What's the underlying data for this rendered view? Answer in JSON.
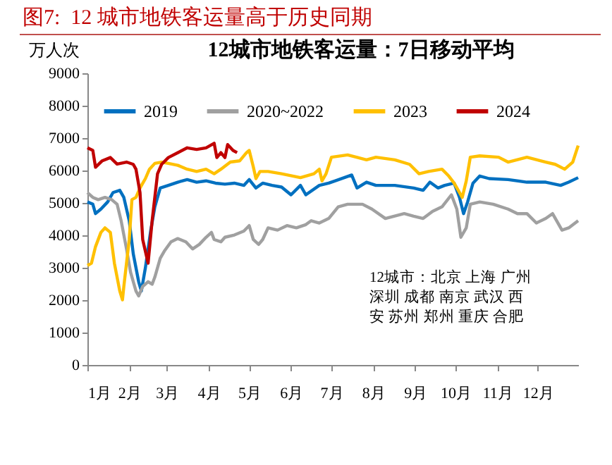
{
  "chart_data": {
    "type": "line",
    "title": "图7:  12 城市地铁客运量高于历史同期",
    "subtitle": "12城市地铁客运量：7日移动平均",
    "ylabel": "万人次",
    "annotations": [
      "12城市：北京 上海 广州深圳 成都 南京 武汉 西安 苏州 郑州 重庆 合肥"
    ],
    "xlim": [
      "--01-01",
      "--12-31"
    ],
    "xticks": [
      {
        "value": "--01-01",
        "label": "1月"
      },
      {
        "value": "--02-01",
        "label": "2月"
      },
      {
        "value": "--03-01",
        "label": "3月"
      },
      {
        "value": "--04-01",
        "label": "4月"
      },
      {
        "value": "--05-01",
        "label": "5月"
      },
      {
        "value": "--06-01",
        "label": "6月"
      },
      {
        "value": "--07-01",
        "label": "7月"
      },
      {
        "value": "--08-01",
        "label": "8月"
      },
      {
        "value": "--09-01",
        "label": "9月"
      },
      {
        "value": "--10-01",
        "label": "10月"
      },
      {
        "value": "--11-01",
        "label": "11月"
      },
      {
        "value": "--12-01",
        "label": "12月"
      }
    ],
    "ylim": [
      0,
      9000
    ],
    "yticks": [
      0,
      1000,
      2000,
      3000,
      4000,
      5000,
      6000,
      7000,
      8000,
      9000
    ],
    "grid": false,
    "legend": "top",
    "marker": "none",
    "line_style": "solid",
    "series": [
      {
        "name": "2019",
        "color": "#0070c0",
        "x": [
          "--01-01",
          "--01-05",
          "--01-07",
          "--01-11",
          "--01-16",
          "--01-20",
          "--01-25",
          "--01-28",
          "--02-01",
          "--02-04",
          "--02-08",
          "--02-10",
          "--02-13",
          "--02-17",
          "--02-20",
          "--02-24",
          "--03-02",
          "--03-09",
          "--03-16",
          "--03-23",
          "--03-30",
          "--04-06",
          "--04-13",
          "--04-20",
          "--04-27",
          "--05-01",
          "--05-06",
          "--05-11",
          "--05-18",
          "--05-25",
          "--06-01",
          "--06-08",
          "--06-12",
          "--06-22",
          "--06-29",
          "--07-16",
          "--07-20",
          "--07-27",
          "--08-03",
          "--08-17",
          "--08-31",
          "--09-07",
          "--09-12",
          "--09-18",
          "--09-23",
          "--09-30",
          "--10-04",
          "--10-07",
          "--10-10",
          "--10-14",
          "--10-19",
          "--10-26",
          "--11-09",
          "--11-23",
          "--12-07",
          "--12-18",
          "--12-24",
          "--12-31"
        ],
        "values": [
          5030,
          4960,
          4670,
          4810,
          5030,
          5320,
          5390,
          5170,
          4450,
          3430,
          2570,
          2280,
          3000,
          4160,
          4880,
          5460,
          5540,
          5640,
          5720,
          5640,
          5680,
          5610,
          5580,
          5610,
          5540,
          5720,
          5460,
          5610,
          5540,
          5490,
          5250,
          5540,
          5250,
          5540,
          5610,
          5860,
          5460,
          5640,
          5540,
          5540,
          5460,
          5390,
          5640,
          5460,
          5540,
          5610,
          5170,
          4670,
          5030,
          5610,
          5830,
          5750,
          5720,
          5640,
          5640,
          5540,
          5640,
          5780
        ]
      },
      {
        "name": "2020~2022",
        "color": "#a0a0a0",
        "x": [
          "--01-01",
          "--01-05",
          "--01-09",
          "--01-14",
          "--01-19",
          "--01-23",
          "--01-26",
          "--01-30",
          "--02-02",
          "--02-06",
          "--02-08",
          "--02-11",
          "--02-15",
          "--02-18",
          "--02-20",
          "--02-24",
          "--02-27",
          "--03-04",
          "--03-09",
          "--03-15",
          "--03-20",
          "--03-25",
          "--03-30",
          "--04-03",
          "--04-05",
          "--04-10",
          "--04-13",
          "--04-20",
          "--04-27",
          "--05-01",
          "--05-04",
          "--05-08",
          "--05-11",
          "--05-15",
          "--05-22",
          "--05-29",
          "--06-05",
          "--06-12",
          "--06-16",
          "--06-22",
          "--06-29",
          "--07-06",
          "--07-13",
          "--07-24",
          "--07-31",
          "--08-10",
          "--08-24",
          "--08-31",
          "--09-07",
          "--09-14",
          "--09-21",
          "--09-28",
          "--10-02",
          "--10-05",
          "--10-09",
          "--10-12",
          "--10-19",
          "--10-29",
          "--11-09",
          "--11-16",
          "--11-23",
          "--11-30",
          "--12-07",
          "--12-12",
          "--12-19",
          "--12-24",
          "--12-31"
        ],
        "values": [
          5320,
          5170,
          5100,
          5170,
          5100,
          4960,
          4450,
          3580,
          2860,
          2280,
          2130,
          2420,
          2570,
          2490,
          2710,
          3290,
          3510,
          3800,
          3900,
          3800,
          3580,
          3720,
          3940,
          4090,
          3870,
          3800,
          3940,
          4010,
          4130,
          4300,
          3870,
          3720,
          3870,
          4230,
          4160,
          4300,
          4230,
          4330,
          4450,
          4380,
          4520,
          4880,
          4960,
          4960,
          4810,
          4520,
          4670,
          4590,
          4520,
          4740,
          4880,
          5250,
          4810,
          3940,
          4230,
          4960,
          5030,
          4960,
          4810,
          4670,
          4670,
          4380,
          4520,
          4670,
          4160,
          4230,
          4450
        ]
      },
      {
        "name": "2023",
        "color": "#ffc000",
        "x": [
          "--01-01",
          "--01-04",
          "--01-07",
          "--01-11",
          "--01-14",
          "--01-18",
          "--01-21",
          "--01-25",
          "--01-27",
          "--01-28",
          "--02-01",
          "--02-03",
          "--02-06",
          "--02-09",
          "--02-13",
          "--02-16",
          "--02-20",
          "--02-25",
          "--03-02",
          "--03-09",
          "--03-16",
          "--03-23",
          "--03-30",
          "--04-05",
          "--04-10",
          "--04-17",
          "--04-24",
          "--04-29",
          "--05-01",
          "--05-04",
          "--05-06",
          "--05-09",
          "--05-15",
          "--05-25",
          "--06-08",
          "--06-18",
          "--06-22",
          "--06-24",
          "--06-27",
          "--07-01",
          "--07-13",
          "--07-27",
          "--08-03",
          "--08-17",
          "--08-28",
          "--09-04",
          "--09-11",
          "--09-21",
          "--09-26",
          "--09-30",
          "--10-04",
          "--10-06",
          "--10-09",
          "--10-12",
          "--10-19",
          "--11-02",
          "--11-09",
          "--11-23",
          "--12-07",
          "--12-14",
          "--12-21",
          "--12-27",
          "--12-31"
        ],
        "values": [
          3070,
          3140,
          3650,
          4090,
          4230,
          4090,
          3140,
          2280,
          2010,
          2420,
          3870,
          5100,
          5170,
          5460,
          5750,
          6040,
          6220,
          6260,
          6220,
          6160,
          6040,
          5970,
          6040,
          5900,
          6040,
          6260,
          6300,
          6550,
          6620,
          6120,
          5750,
          5970,
          5970,
          5900,
          5780,
          5900,
          6040,
          5680,
          5900,
          6410,
          6480,
          6330,
          6410,
          6330,
          6190,
          5900,
          5970,
          6040,
          5830,
          5610,
          5320,
          5170,
          5680,
          6410,
          6450,
          6410,
          6260,
          6410,
          6260,
          6190,
          6040,
          6260,
          6770
        ]
      },
      {
        "name": "2024",
        "color": "#c00000",
        "x": [
          "--01-01",
          "--01-05",
          "--01-07",
          "--01-12",
          "--01-18",
          "--01-23",
          "--01-30",
          "--02-04",
          "--02-06",
          "--02-09",
          "--02-11",
          "--02-15",
          "--02-18",
          "--02-22",
          "--02-25",
          "--03-02",
          "--03-09",
          "--03-16",
          "--03-23",
          "--03-30",
          "--04-05",
          "--04-07",
          "--04-10",
          "--04-13",
          "--04-15",
          "--04-19",
          "--04-22"
        ],
        "values": [
          6700,
          6620,
          6100,
          6300,
          6400,
          6200,
          6260,
          6190,
          6040,
          5320,
          3870,
          3140,
          4450,
          5900,
          6190,
          6400,
          6550,
          6700,
          6650,
          6700,
          6840,
          6400,
          6550,
          6400,
          6800,
          6620,
          6550
        ]
      }
    ]
  }
}
